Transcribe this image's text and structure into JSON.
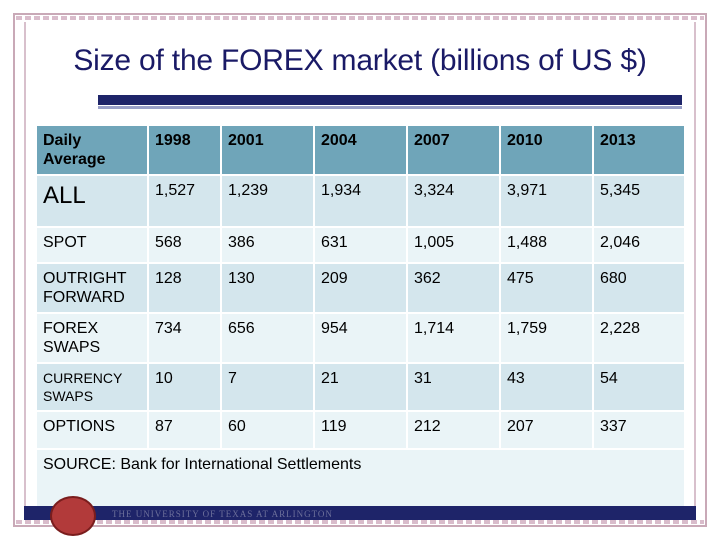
{
  "slide": {
    "title": "Size of the FOREX market (billions of US $)",
    "footer_text": "THE UNIVERSITY OF TEXAS AT ARLINGTON"
  },
  "table": {
    "headers": [
      "Daily Average",
      "1998",
      "2001",
      "2004",
      "2007",
      "2010",
      "2013"
    ],
    "rows": [
      {
        "label": "ALL",
        "values": [
          "1,527",
          "1,239",
          "1,934",
          "3,324",
          "3,971",
          "5,345"
        ]
      },
      {
        "label": "SPOT",
        "values": [
          "568",
          "386",
          "631",
          "1,005",
          "1,488",
          "2,046"
        ]
      },
      {
        "label": "OUTRIGHT FORWARD",
        "values": [
          "128",
          "130",
          "209",
          "362",
          "475",
          "680"
        ]
      },
      {
        "label": "FOREX SWAPS",
        "values": [
          "734",
          "656",
          "954",
          "1,714",
          "1,759",
          "2,228"
        ]
      },
      {
        "label": "CURRENCY SWAPS",
        "values": [
          "10",
          "7",
          "21",
          "31",
          "43",
          "54"
        ]
      },
      {
        "label": "OPTIONS",
        "values": [
          "87",
          "60",
          "119",
          "212",
          "207",
          "337"
        ]
      }
    ],
    "source": "SOURCE:  Bank for International Settlements"
  },
  "colors": {
    "title": "#1a1a66",
    "accent_bar": "#1e2469",
    "header_bg": "#6fa5b9",
    "row_dark": "#d4e6ed",
    "row_light": "#eaf4f7"
  }
}
